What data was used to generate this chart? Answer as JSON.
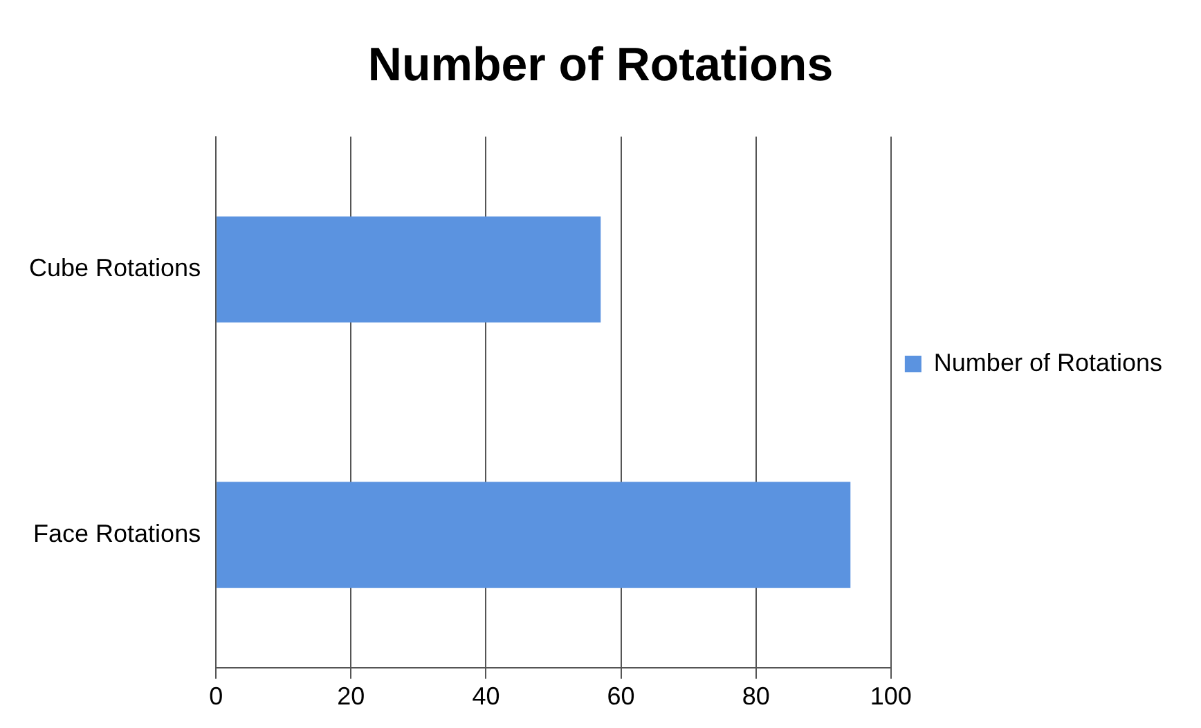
{
  "chart_data": {
    "type": "bar",
    "orientation": "horizontal",
    "title": "Number of Rotations",
    "categories": [
      "Cube Rotations",
      "Face Rotations"
    ],
    "series": [
      {
        "name": "Number of Rotations",
        "color": "#5b93e0",
        "values": [
          57,
          94
        ]
      }
    ],
    "xlim": [
      0,
      100
    ],
    "xticks": [
      0,
      20,
      40,
      60,
      80,
      100
    ],
    "grid": "x",
    "legend": "right"
  }
}
